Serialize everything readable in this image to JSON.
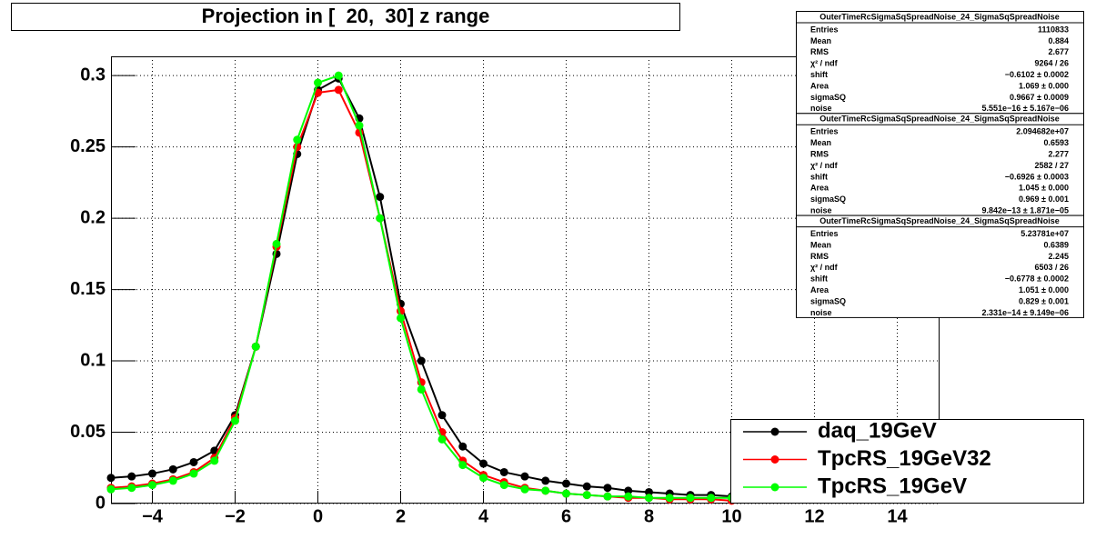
{
  "chart_data": {
    "type": "line",
    "title": "Projection in [  20,  30] z range",
    "x": [
      -5,
      -4.5,
      -4,
      -3.5,
      -3,
      -2.5,
      -2,
      -1.5,
      -1,
      -0.5,
      0,
      0.5,
      1,
      1.5,
      2,
      2.5,
      3,
      3.5,
      4,
      4.5,
      5,
      5.5,
      6,
      6.5,
      7,
      7.5,
      8,
      8.5,
      9,
      9.5,
      10
    ],
    "series": [
      {
        "name": "daq_19GeV",
        "color": "#000000",
        "values": [
          0.018,
          0.019,
          0.021,
          0.024,
          0.029,
          0.037,
          0.062,
          0.11,
          0.175,
          0.245,
          0.29,
          0.298,
          0.27,
          0.215,
          0.14,
          0.1,
          0.062,
          0.04,
          0.028,
          0.022,
          0.019,
          0.016,
          0.014,
          0.012,
          0.011,
          0.009,
          0.008,
          0.007,
          0.006,
          0.006,
          0.005
        ]
      },
      {
        "name": "TpcRS_19GeV32",
        "color": "#ff0000",
        "values": [
          0.011,
          0.012,
          0.014,
          0.017,
          0.022,
          0.032,
          0.06,
          0.11,
          0.18,
          0.25,
          0.288,
          0.29,
          0.26,
          0.2,
          0.135,
          0.085,
          0.05,
          0.03,
          0.02,
          0.015,
          0.011,
          0.009,
          0.007,
          0.006,
          0.005,
          0.004,
          0.004,
          0.003,
          0.003,
          0.003,
          0.002
        ]
      },
      {
        "name": "TpcRS_19GeV",
        "color": "#00ff00",
        "values": [
          0.01,
          0.011,
          0.013,
          0.016,
          0.021,
          0.03,
          0.058,
          0.11,
          0.182,
          0.255,
          0.295,
          0.3,
          0.265,
          0.2,
          0.13,
          0.08,
          0.045,
          0.027,
          0.018,
          0.013,
          0.01,
          0.009,
          0.007,
          0.006,
          0.005,
          0.005,
          0.004,
          0.004,
          0.004,
          0.004,
          0.004
        ]
      }
    ],
    "xlim": [
      -5,
      15
    ],
    "xticks": [
      {
        "value": -4,
        "label": "−4"
      },
      {
        "value": -2,
        "label": "−2"
      },
      0,
      2,
      4,
      6,
      8,
      10,
      12,
      14
    ],
    "ylim": [
      0,
      0.3135
    ],
    "yticks": [
      0,
      0.05,
      0.1,
      0.15,
      0.2,
      0.25,
      0.3
    ],
    "grid": true,
    "legend": "lower right",
    "stats": [
      {
        "title": "OuterTimeRcSigmaSqSpreadNoise_24_SigmaSqSpreadNoise",
        "rows": [
          [
            "Entries",
            "1110833"
          ],
          [
            "Mean",
            "0.884"
          ],
          [
            "RMS",
            "2.677"
          ],
          [
            "χ² / ndf",
            "9264 / 26"
          ],
          [
            "shift",
            "−0.6102 ± 0.0002"
          ],
          [
            "Area",
            "1.069 ± 0.000"
          ],
          [
            "sigmaSQ",
            "0.9667 ± 0.0009"
          ],
          [
            "noise",
            "5.551e−16 ± 5.167e−06"
          ]
        ]
      },
      {
        "title": "OuterTimeRcSigmaSqSpreadNoise_24_SigmaSqSpreadNoise",
        "rows": [
          [
            "Entries",
            "2.094682e+07"
          ],
          [
            "Mean",
            "0.6593"
          ],
          [
            "RMS",
            "2.277"
          ],
          [
            "χ² / ndf",
            "2582 / 27"
          ],
          [
            "shift",
            "−0.6926 ± 0.0003"
          ],
          [
            "Area",
            "1.045 ± 0.000"
          ],
          [
            "sigmaSQ",
            "0.969 ± 0.001"
          ],
          [
            "noise",
            "9.842e−13 ± 1.871e−05"
          ]
        ]
      },
      {
        "title": "OuterTimeRcSigmaSqSpreadNoise_24_SigmaSqSpreadNoise",
        "rows": [
          [
            "Entries",
            "5.23781e+07"
          ],
          [
            "Mean",
            "0.6389"
          ],
          [
            "RMS",
            "2.245"
          ],
          [
            "χ² / ndf",
            "6503 / 26"
          ],
          [
            "shift",
            "−0.6778 ± 0.0002"
          ],
          [
            "Area",
            "1.051 ± 0.000"
          ],
          [
            "sigmaSQ",
            "0.829 ± 0.001"
          ],
          [
            "noise",
            "2.331e−14 ± 9.149e−06"
          ]
        ]
      }
    ]
  }
}
